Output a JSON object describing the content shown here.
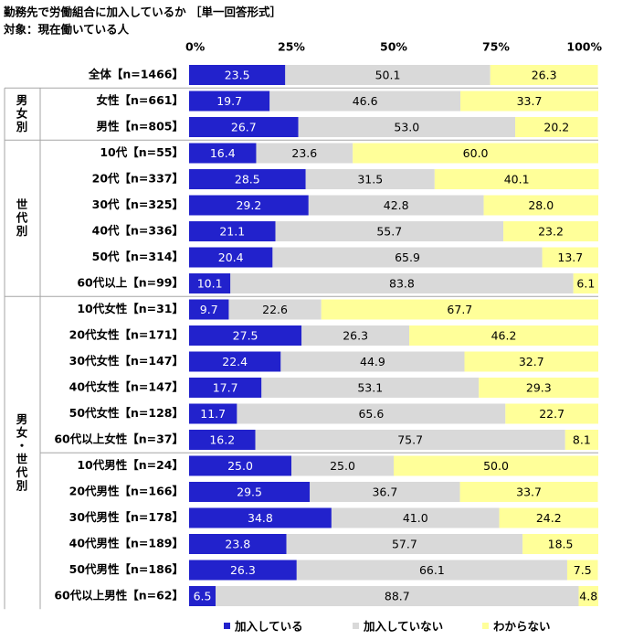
{
  "chart_data": {
    "type": "bar",
    "orientation": "horizontal",
    "stacked": true,
    "title": "勤務先で労働組合に加入しているか ［単一回答形式］",
    "subtitle": "対象：現在働いている人",
    "categories": [
      "全体【n=1466】",
      "女性【n=661】",
      "男性【n=805】",
      "10代【n=55】",
      "20代【n=337】",
      "30代【n=325】",
      "40代【n=336】",
      "50代【n=314】",
      "60代以上【n=99】",
      "10代女性【n=31】",
      "20代女性【n=171】",
      "30代女性【n=147】",
      "40代女性【n=147】",
      "50代女性【n=128】",
      "60代以上女性【n=37】",
      "10代男性【n=24】",
      "20代男性【n=166】",
      "30代男性【n=178】",
      "40代男性【n=189】",
      "50代男性【n=186】",
      "60代以上男性【n=62】"
    ],
    "groups": [
      {
        "label": "男女別",
        "categories": [
          "女性【n=661】",
          "男性【n=805】"
        ]
      },
      {
        "label": "世代別",
        "categories": [
          "10代【n=55】",
          "20代【n=337】",
          "30代【n=325】",
          "40代【n=336】",
          "50代【n=314】",
          "60代以上【n=99】"
        ]
      },
      {
        "label": "男女・世代別",
        "categories": [
          "10代女性【n=31】",
          "20代女性【n=171】",
          "30代女性【n=147】",
          "40代女性【n=147】",
          "50代女性【n=128】",
          "60代以上女性【n=37】",
          "10代男性【n=24】",
          "20代男性【n=166】",
          "30代男性【n=178】",
          "40代男性【n=189】",
          "50代男性【n=186】",
          "60代以上男性【n=62】"
        ]
      }
    ],
    "series": [
      {
        "name": "加入している",
        "color": "#2222cc",
        "label_color": "#ffffff",
        "values": [
          23.5,
          19.7,
          26.7,
          16.4,
          28.5,
          29.2,
          21.1,
          20.4,
          10.1,
          9.7,
          27.5,
          22.4,
          17.7,
          11.7,
          16.2,
          25.0,
          29.5,
          34.8,
          23.8,
          26.3,
          6.5
        ],
        "value_labels": [
          "23.5",
          "19.7",
          "26.7",
          "16.4",
          "28.5",
          "29.2",
          "21.1",
          "20.4",
          "10.1",
          "9.7",
          "27.5",
          "22.4",
          "17.7",
          "11.7",
          "16.2",
          "25.0",
          "29.5",
          "34.8",
          "23.8",
          "26.3",
          "6.5"
        ]
      },
      {
        "name": "加入していない",
        "color": "#d9d9d9",
        "label_color": "#000000",
        "values": [
          50.1,
          46.6,
          53.0,
          23.6,
          31.5,
          42.8,
          55.7,
          65.9,
          83.8,
          22.6,
          26.3,
          44.9,
          53.1,
          65.6,
          75.7,
          25.0,
          36.7,
          41.0,
          57.7,
          66.1,
          88.7
        ],
        "value_labels": [
          "50.1",
          "46.6",
          "53.0",
          "23.6",
          "31.5",
          "42.8",
          "55.7",
          "65.9",
          "83.8",
          "22.6",
          "26.3",
          "44.9",
          "53.1",
          "65.6",
          "75.7",
          "25.0",
          "36.7",
          "41.0",
          "57.7",
          "66.1",
          "88.7"
        ]
      },
      {
        "name": "わからない",
        "color": "#ffff99",
        "label_color": "#000000",
        "values": [
          26.3,
          33.7,
          20.2,
          60.0,
          40.1,
          28.0,
          23.2,
          13.7,
          6.1,
          67.7,
          46.2,
          32.7,
          29.3,
          22.7,
          8.1,
          50.0,
          33.7,
          24.2,
          18.5,
          7.5,
          4.8
        ],
        "value_labels": [
          "26.3",
          "33.7",
          "20.2",
          "60.0",
          "40.1",
          "28.0",
          "23.2",
          "13.7",
          "6.1",
          "67.7",
          "46.2",
          "32.7",
          "29.3",
          "22.7",
          "8.1",
          "50.0",
          "33.7",
          "24.2",
          "18.5",
          "7.5",
          "4.8"
        ]
      }
    ],
    "xlim": [
      0,
      100
    ],
    "xticks": [
      {
        "value": 0,
        "label": "0%"
      },
      {
        "value": 25,
        "label": "25%"
      },
      {
        "value": 50,
        "label": "50%"
      },
      {
        "value": 75,
        "label": "75%"
      },
      {
        "value": 100,
        "label": "100%"
      }
    ],
    "legend": "bottom"
  }
}
